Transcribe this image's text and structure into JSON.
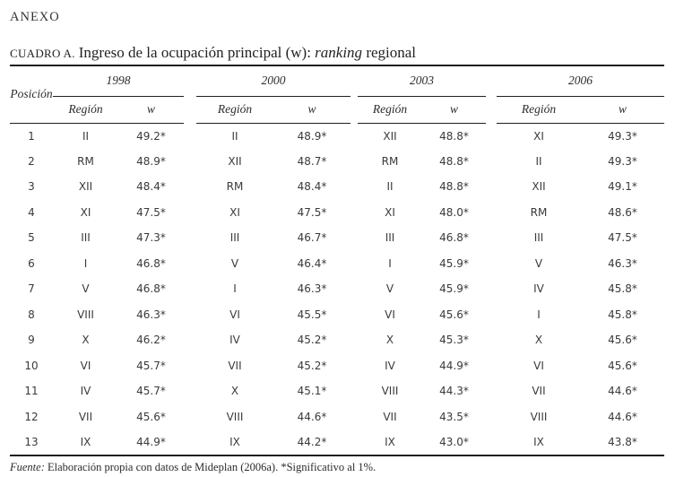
{
  "page": {
    "anexo": "ANEXO",
    "title": {
      "cuadro": "CUADRO A.",
      "main": "Ingreso de la ocupación principal (w): ",
      "ranking": "ranking",
      "suffix": " regional"
    },
    "footer": {
      "fuente_label": "Fuente:",
      "text": " Elaboración propia con datos de Mideplan (2006a). *Significativo al 1%."
    }
  },
  "table": {
    "posicion_label": "Posición",
    "region_label": "Región",
    "w_label": "w",
    "years": [
      "1998",
      "2000",
      "2003",
      "2006"
    ],
    "rows": [
      {
        "pos": "1",
        "values": [
          [
            "II",
            "49.2*"
          ],
          [
            "II",
            "48.9*"
          ],
          [
            "XII",
            "48.8*"
          ],
          [
            "XI",
            "49.3*"
          ]
        ]
      },
      {
        "pos": "2",
        "values": [
          [
            "RM",
            "48.9*"
          ],
          [
            "XII",
            "48.7*"
          ],
          [
            "RM",
            "48.8*"
          ],
          [
            "II",
            "49.3*"
          ]
        ]
      },
      {
        "pos": "3",
        "values": [
          [
            "XII",
            "48.4*"
          ],
          [
            "RM",
            "48.4*"
          ],
          [
            "II",
            "48.8*"
          ],
          [
            "XII",
            "49.1*"
          ]
        ]
      },
      {
        "pos": "4",
        "values": [
          [
            "XI",
            "47.5*"
          ],
          [
            "XI",
            "47.5*"
          ],
          [
            "XI",
            "48.0*"
          ],
          [
            "RM",
            "48.6*"
          ]
        ]
      },
      {
        "pos": "5",
        "values": [
          [
            "III",
            "47.3*"
          ],
          [
            "III",
            "46.7*"
          ],
          [
            "III",
            "46.8*"
          ],
          [
            "III",
            "47.5*"
          ]
        ]
      },
      {
        "pos": "6",
        "values": [
          [
            "I",
            "46.8*"
          ],
          [
            "V",
            "46.4*"
          ],
          [
            "I",
            "45.9*"
          ],
          [
            "V",
            "46.3*"
          ]
        ]
      },
      {
        "pos": "7",
        "values": [
          [
            "V",
            "46.8*"
          ],
          [
            "I",
            "46.3*"
          ],
          [
            "V",
            "45.9*"
          ],
          [
            "IV",
            "45.8*"
          ]
        ]
      },
      {
        "pos": "8",
        "values": [
          [
            "VIII",
            "46.3*"
          ],
          [
            "VI",
            "45.5*"
          ],
          [
            "VI",
            "45.6*"
          ],
          [
            "I",
            "45.8*"
          ]
        ]
      },
      {
        "pos": "9",
        "values": [
          [
            "X",
            "46.2*"
          ],
          [
            "IV",
            "45.2*"
          ],
          [
            "X",
            "45.3*"
          ],
          [
            "X",
            "45.6*"
          ]
        ]
      },
      {
        "pos": "10",
        "values": [
          [
            "VI",
            "45.7*"
          ],
          [
            "VII",
            "45.2*"
          ],
          [
            "IV",
            "44.9*"
          ],
          [
            "VI",
            "45.6*"
          ]
        ]
      },
      {
        "pos": "11",
        "values": [
          [
            "IV",
            "45.7*"
          ],
          [
            "X",
            "45.1*"
          ],
          [
            "VIII",
            "44.3*"
          ],
          [
            "VII",
            "44.6*"
          ]
        ]
      },
      {
        "pos": "12",
        "values": [
          [
            "VII",
            "45.6*"
          ],
          [
            "VIII",
            "44.6*"
          ],
          [
            "VII",
            "43.5*"
          ],
          [
            "VIII",
            "44.6*"
          ]
        ]
      },
      {
        "pos": "13",
        "values": [
          [
            "IX",
            "44.9*"
          ],
          [
            "IX",
            "44.2*"
          ],
          [
            "IX",
            "43.0*"
          ],
          [
            "IX",
            "43.8*"
          ]
        ]
      }
    ]
  }
}
